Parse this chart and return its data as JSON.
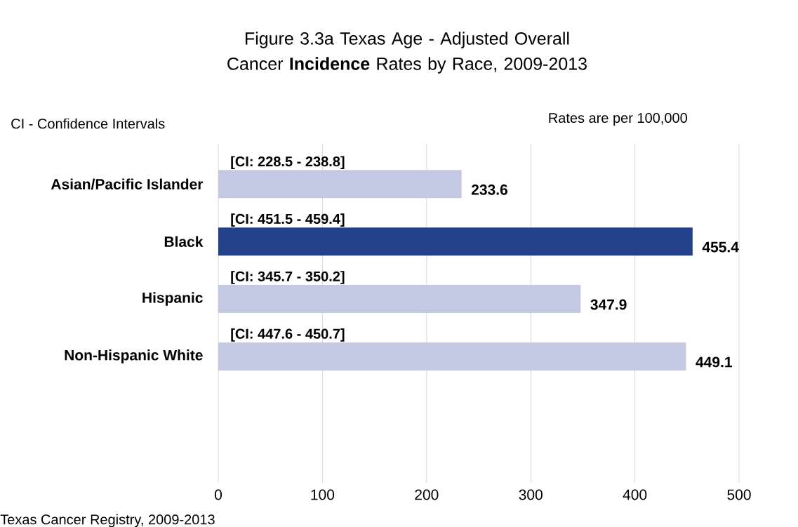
{
  "chart_data": {
    "type": "bar",
    "orientation": "horizontal",
    "title": "Figure 3.3a Texas Age - Adjusted Overall Cancer **Incidence** Rates by Race, 2009-2013",
    "categories": [
      "Asian/Pacific Islander",
      "Black",
      "Hispanic",
      "Non-Hispanic White"
    ],
    "values": [
      233.6,
      455.4,
      347.9,
      449.1
    ],
    "colors": [
      "#c3c9e2",
      "#23418a",
      "#c3c9e2",
      "#c3c9e2"
    ],
    "data_labels": true,
    "xlim": [
      0,
      500
    ],
    "xticks": [
      0,
      100,
      200,
      300,
      400,
      500
    ],
    "grid": "x",
    "annotations": [
      "[CI: 228.5 - 238.8]",
      "[CI: 451.5 - 459.4]",
      "[CI: 345.7 - 350.2]",
      "[CI: 447.6 - 450.7]",
      "CI - Confidence Intervals",
      "Rates are per 100,000",
      "Texas Cancer Registry, 2009-2013"
    ]
  }
}
